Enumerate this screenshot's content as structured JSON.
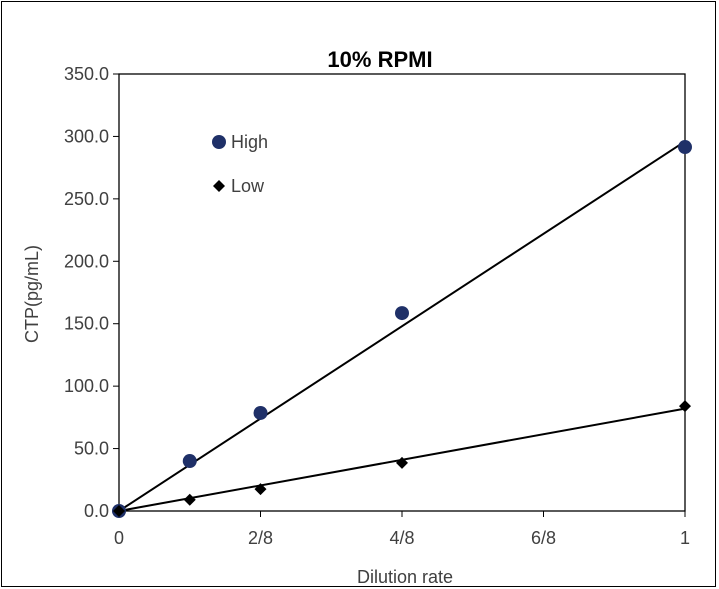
{
  "chart_data": {
    "type": "scatter",
    "title": "10% RPMI",
    "xlabel": "Dilution rate",
    "ylabel": "CTP(pg/mL)",
    "xlim": [
      0,
      1
    ],
    "ylim": [
      0,
      350
    ],
    "x_ticks": [
      0,
      0.25,
      0.5,
      0.75,
      1
    ],
    "x_tick_labels": [
      "0",
      "2/8",
      "4/8",
      "6/8",
      "1"
    ],
    "y_ticks": [
      0,
      50,
      100,
      150,
      200,
      250,
      300,
      350
    ],
    "y_tick_labels": [
      "0.0",
      "50.0",
      "100.0",
      "150.0",
      "200.0",
      "250.0",
      "300.0",
      "350.0"
    ],
    "grid": false,
    "legend_position": "top-left",
    "series": [
      {
        "name": "High",
        "marker": "circle",
        "color": "#1f3068",
        "x": [
          0,
          0.125,
          0.25,
          0.5,
          1
        ],
        "y": [
          0,
          40,
          78.5,
          158.5,
          291.5
        ],
        "trendline": {
          "type": "linear",
          "x": [
            0,
            1
          ],
          "y": [
            0,
            296
          ]
        }
      },
      {
        "name": "Low",
        "marker": "diamond",
        "color": "#000000",
        "x": [
          0,
          0.125,
          0.25,
          0.5,
          1
        ],
        "y": [
          0,
          9,
          17.5,
          38.5,
          84
        ],
        "trendline": {
          "type": "linear",
          "x": [
            0,
            1
          ],
          "y": [
            0,
            82
          ]
        }
      }
    ]
  }
}
